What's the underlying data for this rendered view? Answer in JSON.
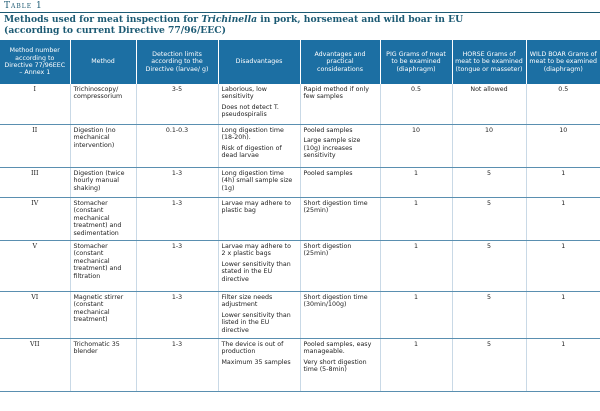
{
  "table_label": "Table 1",
  "caption": {
    "pre": "Methods used for meat inspection for ",
    "italic": "Trichinella",
    "post": " in pork, horsemeat and wild boar in EU",
    "line2": "(according to current Directive 77/96/EEC)"
  },
  "headers": [
    "Method number according to Directive 77/96EEC – Annex 1",
    "Method",
    "Detection limits according to the Directive (larvae/ g)",
    "Disadvantages",
    "Advantages and practical considerations",
    "PIG Grams of meat to be examined (diaphragm)",
    "HORSE Grams of meat to be examined (tongue or masseter)",
    "WILD BOAR Grams of meat to be examined (diaphragm)"
  ],
  "rows": [
    {
      "number": "I",
      "method": "Trichinoscopy/ compressorium",
      "detection": "3-5",
      "disadvantages": [
        "Laborious, low sensitivity",
        "Does not detect T. pseudospiralis"
      ],
      "advantages": [
        "Rapid method if only few samples"
      ],
      "pig": "0.5",
      "horse": "Not allowed",
      "boar": "0.5"
    },
    {
      "number": "II",
      "method": "Digestion (no mechanical intervention)",
      "detection": "0.1-0.3",
      "disadvantages": [
        "Long digestion time (18-20h).",
        "Risk of digestion of dead larvae"
      ],
      "advantages": [
        "Pooled samples",
        "Large sample size (10g) increases sensitivity"
      ],
      "pig": "10",
      "horse": "10",
      "boar": "10"
    },
    {
      "number": "III",
      "method": "Digestion (twice hourly manual shaking)",
      "detection": "1-3",
      "disadvantages": [
        "Long digestion time (4h) small sample size (1g)"
      ],
      "advantages": [
        "Pooled samples"
      ],
      "pig": "1",
      "horse": "5",
      "boar": "1"
    },
    {
      "number": "IV",
      "method": "Stomacher (constant mechanical treatment) and sedimentation",
      "detection": "1-3",
      "disadvantages": [
        "Larvae may adhere to plastic bag"
      ],
      "advantages": [
        "Short digestion time (25min)"
      ],
      "pig": "1",
      "horse": "5",
      "boar": "1"
    },
    {
      "number": "V",
      "method": "Stomacher (constant mechanical treatment) and filtration",
      "detection": "1-3",
      "disadvantages": [
        "Larvae may adhere to 2 x plastic bags",
        "Lower sensitivity than stated in the EU directive"
      ],
      "advantages": [
        "Short digestion (25min)"
      ],
      "pig": "1",
      "horse": "5",
      "boar": "1"
    },
    {
      "number": "VI",
      "method": "Magnetic stirrer (constant mechanical treatment)",
      "detection": "1-3",
      "disadvantages": [
        "Filter size needs adjustment",
        "Lower sensitivity than listed in the EU directive"
      ],
      "advantages": [
        "Short digestion time (30min/100g)"
      ],
      "pig": "1",
      "horse": "5",
      "boar": "1"
    },
    {
      "number": "VII",
      "method": "Trichomatic 35 blender",
      "detection": "1-3",
      "disadvantages": [
        "The device is out of production",
        "Maximum 35 samples"
      ],
      "advantages": [
        "Pooled samples, easy manageable.",
        "Very short digestion time (5-8min)"
      ],
      "pig": "1",
      "horse": "5",
      "boar": "1"
    }
  ]
}
